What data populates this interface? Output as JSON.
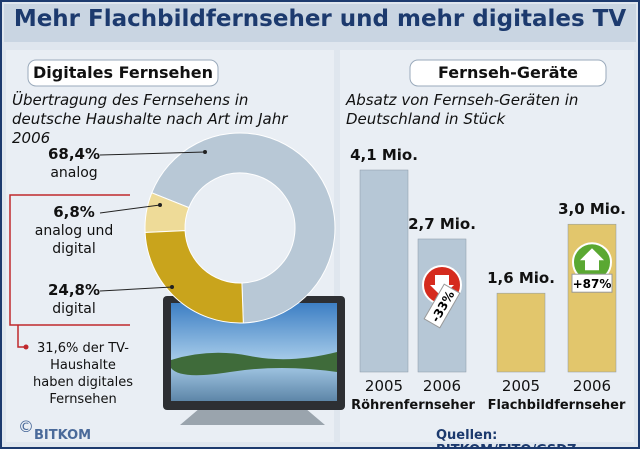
{
  "title": "Mehr Flachbildfernseher und mehr digitales TV",
  "source": "Quellen: BITKOM/EITO/GSDZ",
  "logo": "BITKOM",
  "chart_data": [
    {
      "type": "pie",
      "tab": "Digitales Fernsehen",
      "title": "Übertragung des Fernsehens in deutsche Haushalte nach Art im Jahr 2006",
      "categories": [
        "analog",
        "analog und digital",
        "digital"
      ],
      "values": [
        68.4,
        6.8,
        24.8
      ],
      "value_labels": [
        "68,4%",
        "6,8%",
        "24,8%"
      ],
      "colors": [
        "#b8c8d6",
        "#eedb98",
        "#c9a41c"
      ],
      "annotation": "31,6% der TV-Haushalte haben digitales Fernsehen"
    },
    {
      "type": "bar",
      "tab": "Fernseh-Geräte",
      "title": "Absatz von Fernseh-Geräten in Deutschland in Stück",
      "groups": [
        {
          "name": "Röhrenfernseher",
          "color": "#b6c7d6",
          "categories": [
            "2005",
            "2006"
          ],
          "values": [
            4.1,
            2.7
          ],
          "value_labels": [
            "4,1 Mio.",
            "2,7 Mio."
          ],
          "change_label": "-33%",
          "change_color": "#d52b1e"
        },
        {
          "name": "Flachbildfernseher",
          "color": "#e2c66c",
          "categories": [
            "2005",
            "2006"
          ],
          "values": [
            1.6,
            3.0
          ],
          "value_labels": [
            "1,6 Mio.",
            "3,0 Mio."
          ],
          "change_label": "+87%",
          "change_color": "#5aa832"
        }
      ]
    }
  ]
}
